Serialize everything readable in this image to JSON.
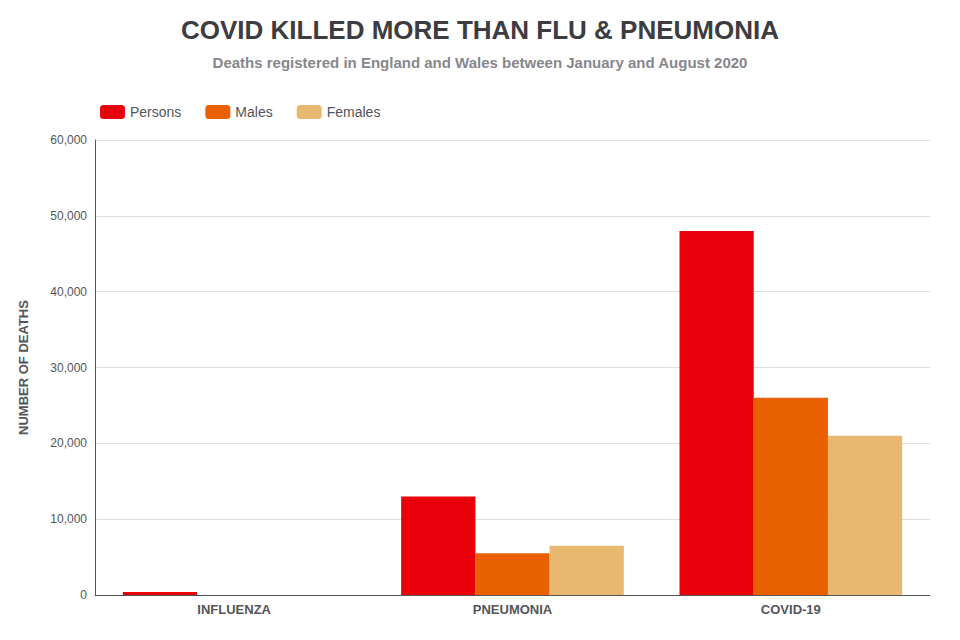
{
  "chart_data": {
    "type": "bar",
    "title": "COVID KILLED MORE THAN FLU & PNEUMONIA",
    "subtitle": "Deaths registered in England and Wales between January and August 2020",
    "categories": [
      "INFLUENZA",
      "PNEUMONIA",
      "COVID-19"
    ],
    "series": [
      {
        "name": "Persons",
        "color": "#e8000a",
        "values": [
          400,
          13000,
          48000
        ]
      },
      {
        "name": "Males",
        "color": "#e86000",
        "values": [
          0,
          5500,
          26000
        ]
      },
      {
        "name": "Females",
        "color": "#e8b870",
        "values": [
          0,
          6500,
          21000
        ]
      }
    ],
    "ylabel": "NUMBER OF DEATHS",
    "ylim": [
      0,
      60000
    ],
    "yticks": [
      0,
      {
        "value": 10000,
        "label": "10,000"
      },
      {
        "value": 20000,
        "label": "20,000"
      },
      {
        "value": 30000,
        "label": "30,000"
      },
      {
        "value": 40000,
        "label": "40,000"
      },
      {
        "value": 50000,
        "label": "50,000"
      },
      {
        "value": 60000,
        "label": "60,000"
      }
    ],
    "grid": true,
    "legend": "upper left"
  }
}
